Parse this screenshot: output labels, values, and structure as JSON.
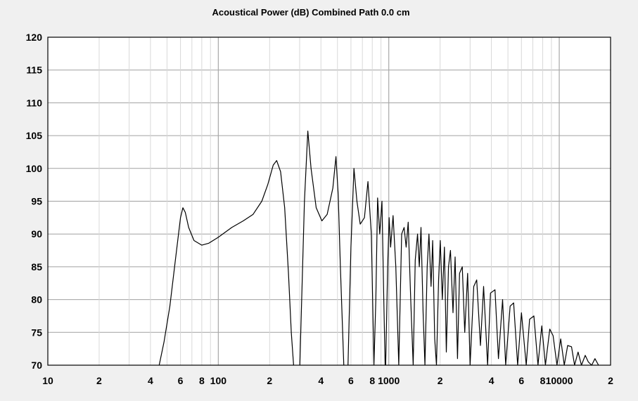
{
  "chart_data": {
    "type": "line",
    "title": "Acoustical Power (dB)   Combined   Path 0.0 cm",
    "xlabel": "",
    "ylabel": "",
    "x_scale": "log",
    "xlim": [
      10,
      20000
    ],
    "ylim": [
      70,
      120
    ],
    "grid": true,
    "legend": "none",
    "y_ticks": [
      120,
      115,
      110,
      105,
      100,
      95,
      90,
      85,
      80,
      75,
      70
    ],
    "x_ticks": [
      {
        "value": 10,
        "label": "10"
      },
      {
        "value": 20,
        "label": "2"
      },
      {
        "value": 40,
        "label": "4"
      },
      {
        "value": 60,
        "label": "6"
      },
      {
        "value": 80,
        "label": "8"
      },
      {
        "value": 100,
        "label": "100"
      },
      {
        "value": 200,
        "label": "2"
      },
      {
        "value": 400,
        "label": "4"
      },
      {
        "value": 600,
        "label": "6"
      },
      {
        "value": 800,
        "label": "8"
      },
      {
        "value": 1000,
        "label": "1000"
      },
      {
        "value": 2000,
        "label": "2"
      },
      {
        "value": 4000,
        "label": "4"
      },
      {
        "value": 6000,
        "label": "6"
      },
      {
        "value": 8000,
        "label": "8"
      },
      {
        "value": 10000,
        "label": "10000"
      },
      {
        "value": 20000,
        "label": "2"
      }
    ],
    "series": [
      {
        "color": "#000000",
        "x": [
          45,
          48,
          52,
          56,
          60,
          62,
          64,
          67,
          72,
          80,
          88,
          100,
          120,
          140,
          160,
          180,
          195,
          210,
          220,
          232,
          245,
          258,
          268,
          280,
          300,
          320,
          335,
          350,
          375,
          405,
          435,
          470,
          490,
          505,
          520,
          548,
          575,
          600,
          625,
          650,
          680,
          720,
          755,
          790,
          818,
          840,
          860,
          885,
          912,
          935,
          955,
          985,
          1005,
          1025,
          1060,
          1100,
          1145,
          1190,
          1230,
          1265,
          1300,
          1345,
          1390,
          1430,
          1475,
          1510,
          1545,
          1590,
          1630,
          1680,
          1720,
          1770,
          1810,
          1860,
          1905,
          1960,
          2005,
          2060,
          2120,
          2175,
          2240,
          2300,
          2380,
          2450,
          2530,
          2600,
          2700,
          2790,
          2900,
          3000,
          3150,
          3280,
          3450,
          3600,
          3800,
          3950,
          4200,
          4400,
          4650,
          4850,
          5150,
          5400,
          5700,
          6000,
          6400,
          6700,
          7100,
          7500,
          7900,
          8300,
          8800,
          9200,
          9700,
          10200,
          10700,
          11200,
          11800,
          12300,
          12900,
          13500,
          14200,
          14800,
          15500,
          16200,
          17000
        ],
        "y": [
          70,
          73.5,
          79,
          86,
          92.5,
          94,
          93.3,
          91,
          89,
          88.3,
          88.6,
          89.5,
          91,
          92,
          93,
          95,
          97.5,
          100.5,
          101.2,
          99.5,
          94,
          84,
          75,
          68,
          69,
          95,
          105.7,
          100,
          94,
          92,
          93,
          97,
          101.8,
          96,
          85,
          68,
          69,
          88,
          100,
          95,
          91.5,
          92.5,
          98,
          90,
          70,
          80,
          95.5,
          90,
          95,
          80,
          68,
          85,
          92.5,
          88,
          92.8,
          85,
          70,
          90,
          91,
          88,
          91.8,
          80,
          70,
          86,
          90,
          85,
          91,
          78,
          70,
          85,
          90,
          82,
          89,
          74,
          70,
          83,
          89,
          80,
          88,
          72,
          85,
          87.5,
          78,
          86.5,
          71,
          84,
          85,
          75,
          84,
          70,
          82,
          83,
          73,
          82,
          70,
          81,
          81.5,
          71,
          80,
          70,
          79,
          79.5,
          70,
          78,
          70,
          77,
          77.5,
          70,
          76,
          70,
          75.5,
          74.5,
          70,
          74,
          70,
          73,
          72.8,
          70,
          72,
          70,
          71.5,
          70.5,
          70,
          71,
          70
        ]
      }
    ]
  }
}
